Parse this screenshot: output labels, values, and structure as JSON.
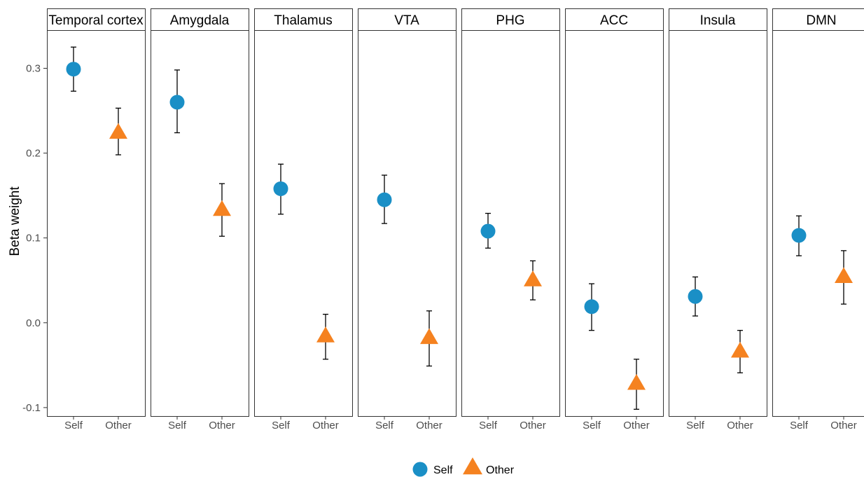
{
  "chart_data": {
    "type": "scatter",
    "ylabel": "Beta weight",
    "xlabel": "",
    "ylim": [
      -0.11,
      0.345
    ],
    "y_ticks": [
      "-0.1",
      "0.0",
      "0.1",
      "0.2",
      "0.3"
    ],
    "categories": [
      "Self",
      "Other"
    ],
    "legend": {
      "position": "bottom",
      "entries": [
        {
          "name": "Self",
          "shape": "circle",
          "color": "#1a8fc6"
        },
        {
          "name": "Other",
          "shape": "triangle",
          "color": "#f58220"
        }
      ]
    },
    "grid": false,
    "panels": [
      {
        "title": "Temporal cortex",
        "self": {
          "y": 0.299,
          "lo": 0.273,
          "hi": 0.325
        },
        "other": {
          "y": 0.224,
          "lo": 0.198,
          "hi": 0.253
        }
      },
      {
        "title": "Amygdala",
        "self": {
          "y": 0.26,
          "lo": 0.224,
          "hi": 0.298
        },
        "other": {
          "y": 0.133,
          "lo": 0.102,
          "hi": 0.164
        }
      },
      {
        "title": "Thalamus",
        "self": {
          "y": 0.158,
          "lo": 0.128,
          "hi": 0.187
        },
        "other": {
          "y": -0.016,
          "lo": -0.043,
          "hi": 0.01
        }
      },
      {
        "title": "VTA",
        "self": {
          "y": 0.145,
          "lo": 0.117,
          "hi": 0.174
        },
        "other": {
          "y": -0.018,
          "lo": -0.051,
          "hi": 0.014
        }
      },
      {
        "title": "PHG",
        "self": {
          "y": 0.108,
          "lo": 0.088,
          "hi": 0.129
        },
        "other": {
          "y": 0.05,
          "lo": 0.027,
          "hi": 0.073
        }
      },
      {
        "title": "ACC",
        "self": {
          "y": 0.019,
          "lo": -0.009,
          "hi": 0.046
        },
        "other": {
          "y": -0.072,
          "lo": -0.102,
          "hi": -0.043
        }
      },
      {
        "title": "Insula",
        "self": {
          "y": 0.031,
          "lo": 0.008,
          "hi": 0.054
        },
        "other": {
          "y": -0.034,
          "lo": -0.059,
          "hi": -0.009
        }
      },
      {
        "title": "DMN",
        "self": {
          "y": 0.103,
          "lo": 0.079,
          "hi": 0.126
        },
        "other": {
          "y": 0.054,
          "lo": 0.022,
          "hi": 0.085
        }
      }
    ]
  }
}
